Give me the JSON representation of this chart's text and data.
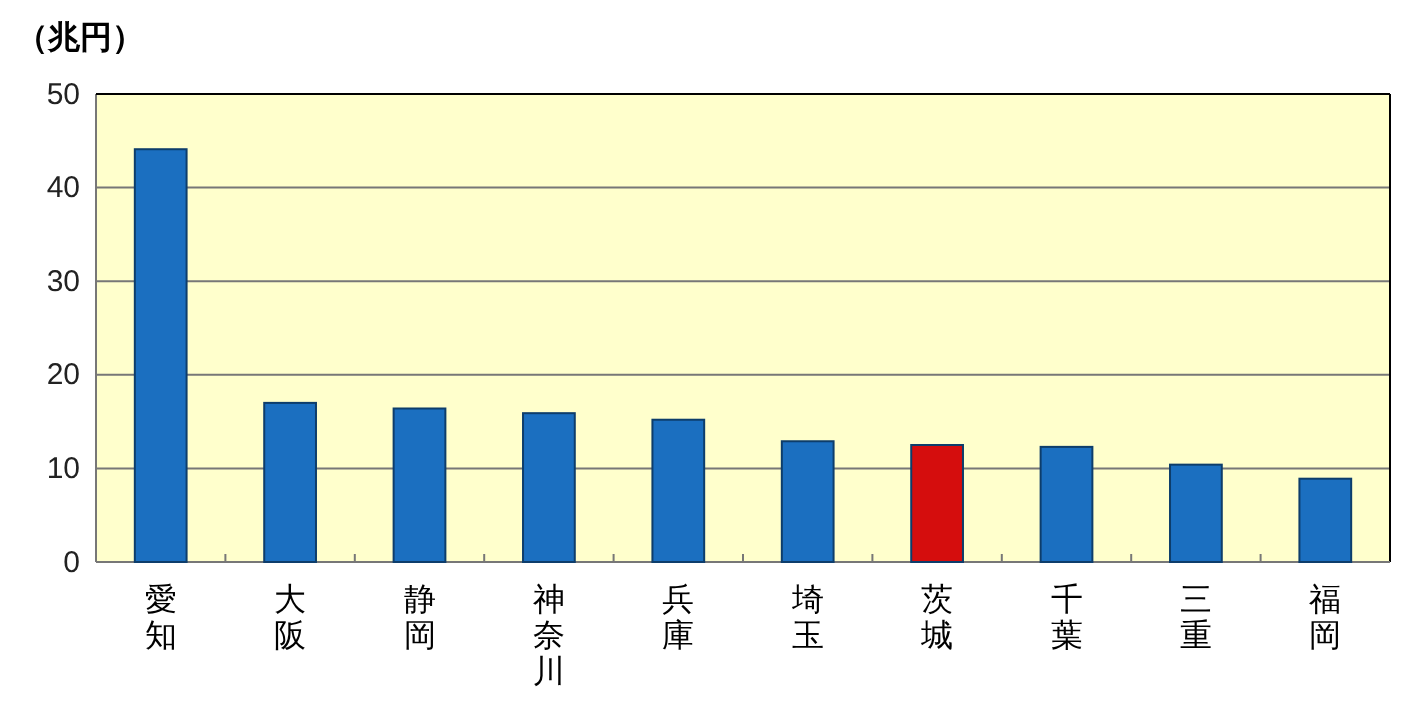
{
  "chart_data": {
    "type": "bar",
    "ylabel": "（兆円）",
    "categories": [
      "愛知",
      "大阪",
      "静岡",
      "神奈川",
      "兵庫",
      "埼玉",
      "茨城",
      "千葉",
      "三重",
      "福岡"
    ],
    "values": [
      44.1,
      17.0,
      16.4,
      15.9,
      15.2,
      12.9,
      12.5,
      12.3,
      10.4,
      8.9
    ],
    "colors": [
      "#1b6fc0",
      "#1b6fc0",
      "#1b6fc0",
      "#1b6fc0",
      "#1b6fc0",
      "#1b6fc0",
      "#d50d0d",
      "#1b6fc0",
      "#1b6fc0",
      "#1b6fc0"
    ],
    "ylim": [
      0,
      50
    ],
    "yticks": [
      0,
      10,
      20,
      30,
      40,
      50
    ],
    "grid": "y"
  }
}
